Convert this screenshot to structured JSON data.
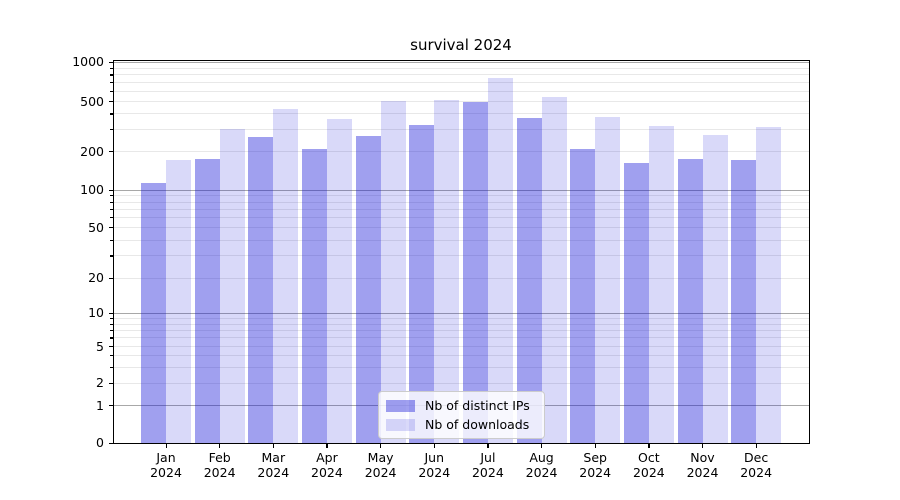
{
  "title": "survival 2024",
  "legend": {
    "items": [
      {
        "label": "Nb of distinct IPs",
        "color": "rgba(10,10,215,0.39)"
      },
      {
        "label": "Nb of downloads",
        "color": "rgba(10,10,215,0.155)"
      }
    ],
    "position": "lower center"
  },
  "y_axis": {
    "tick_values": [
      1000,
      500,
      200,
      100,
      50,
      20,
      10,
      5,
      2,
      1,
      0
    ],
    "tick_labels": [
      "1000",
      "500",
      "200",
      "100",
      "50",
      "20",
      "10",
      "5",
      "2",
      "1",
      "0"
    ],
    "major_grid_values": [
      1,
      10,
      100,
      1000
    ],
    "minor_grid_values": [
      2,
      3,
      4,
      5,
      6,
      7,
      8,
      9,
      20,
      30,
      40,
      50,
      60,
      70,
      80,
      90,
      200,
      300,
      400,
      500,
      600,
      700,
      800,
      900
    ],
    "scale": "symlog"
  },
  "x_axis": {
    "year_line": "2024",
    "months": [
      "Jan",
      "Feb",
      "Mar",
      "Apr",
      "May",
      "Jun",
      "Jul",
      "Aug",
      "Sep",
      "Oct",
      "Nov",
      "Dec"
    ]
  },
  "chart_data": {
    "type": "bar",
    "title": "survival 2024",
    "xlabel": "",
    "ylabel": "",
    "yscale": "symlog",
    "ylim": [
      0,
      1040
    ],
    "grid": true,
    "legend_position": "lower center",
    "categories": [
      "Jan 2024",
      "Feb 2024",
      "Mar 2024",
      "Apr 2024",
      "May 2024",
      "Jun 2024",
      "Jul 2024",
      "Aug 2024",
      "Sep 2024",
      "Oct 2024",
      "Nov 2024",
      "Dec 2024"
    ],
    "series": [
      {
        "name": "Nb of distinct IPs",
        "color": "rgba(10,10,215,0.39)",
        "values": [
          113,
          177,
          260,
          212,
          269,
          326,
          500,
          370,
          212,
          164,
          176,
          172
        ]
      },
      {
        "name": "Nb of downloads",
        "color": "rgba(10,10,215,0.155)",
        "values": [
          172,
          302,
          435,
          363,
          508,
          517,
          760,
          545,
          380,
          318,
          272,
          316
        ]
      }
    ]
  }
}
